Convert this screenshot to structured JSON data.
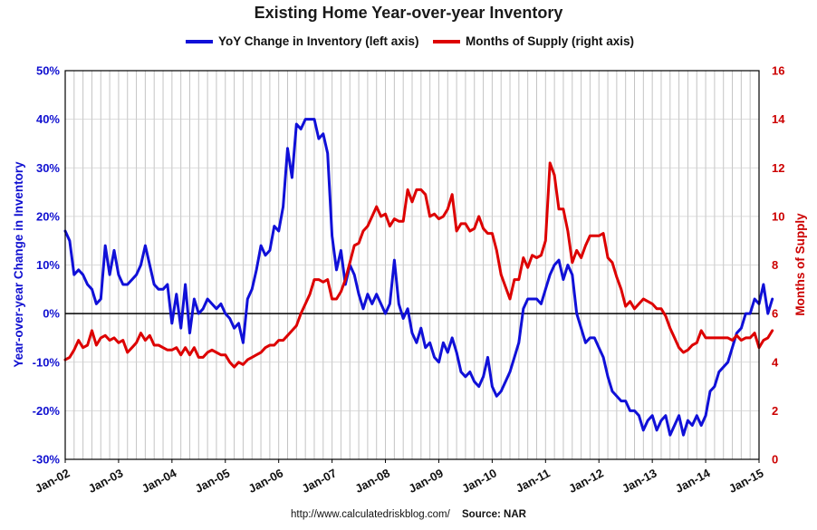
{
  "chart_data": {
    "type": "line",
    "title": "Existing Home Year-over-year Inventory",
    "legend": [
      "YoY Change in Inventory (left axis)",
      "Months of Supply (right axis)"
    ],
    "ylabel_left": "Year-over-year Change in Inventory",
    "ylabel_right": "Months of Supply",
    "ylim_left": [
      -0.3,
      0.5
    ],
    "ylim_right": [
      0,
      16
    ],
    "yticks_left": [
      "-30%",
      "-20%",
      "-10%",
      "0%",
      "10%",
      "20%",
      "30%",
      "40%",
      "50%"
    ],
    "yticks_right": [
      "0",
      "2",
      "4",
      "6",
      "8",
      "10",
      "12",
      "14",
      "16"
    ],
    "xticks": [
      "Jan-02",
      "Jan-03",
      "Jan-04",
      "Jan-05",
      "Jan-06",
      "Jan-07",
      "Jan-08",
      "Jan-09",
      "Jan-10",
      "Jan-11",
      "Jan-12",
      "Jan-13",
      "Jan-14",
      "Jan-15"
    ],
    "x_start": "Jan-02",
    "colors": {
      "yoy": "#1010d8",
      "supply": "#dd0000"
    },
    "series": [
      {
        "name": "YoY Change in Inventory (left axis)",
        "axis": "left",
        "values": [
          0.17,
          0.15,
          0.08,
          0.09,
          0.08,
          0.06,
          0.05,
          0.02,
          0.03,
          0.14,
          0.08,
          0.13,
          0.08,
          0.06,
          0.06,
          0.07,
          0.08,
          0.1,
          0.14,
          0.1,
          0.06,
          0.05,
          0.05,
          0.06,
          -0.02,
          0.04,
          -0.03,
          0.06,
          -0.04,
          0.03,
          0.0,
          0.01,
          0.03,
          0.02,
          0.01,
          0.02,
          0.0,
          -0.01,
          -0.03,
          -0.02,
          -0.06,
          0.03,
          0.05,
          0.09,
          0.14,
          0.12,
          0.13,
          0.18,
          0.17,
          0.22,
          0.34,
          0.28,
          0.39,
          0.38,
          0.4,
          0.4,
          0.4,
          0.36,
          0.37,
          0.33,
          0.16,
          0.09,
          0.13,
          0.06,
          0.1,
          0.08,
          0.04,
          0.01,
          0.04,
          0.02,
          0.04,
          0.02,
          0.0,
          0.02,
          0.11,
          0.02,
          -0.01,
          0.01,
          -0.04,
          -0.06,
          -0.03,
          -0.07,
          -0.06,
          -0.09,
          -0.1,
          -0.06,
          -0.08,
          -0.05,
          -0.08,
          -0.12,
          -0.13,
          -0.12,
          -0.14,
          -0.15,
          -0.13,
          -0.09,
          -0.15,
          -0.17,
          -0.16,
          -0.14,
          -0.12,
          -0.09,
          -0.06,
          0.01,
          0.03,
          0.03,
          0.03,
          0.02,
          0.05,
          0.08,
          0.1,
          0.11,
          0.07,
          0.1,
          0.08,
          0.0,
          -0.03,
          -0.06,
          -0.05,
          -0.05,
          -0.07,
          -0.09,
          -0.13,
          -0.16,
          -0.17,
          -0.18,
          -0.18,
          -0.2,
          -0.2,
          -0.21,
          -0.24,
          -0.22,
          -0.21,
          -0.24,
          -0.22,
          -0.21,
          -0.25,
          -0.23,
          -0.21,
          -0.25,
          -0.22,
          -0.23,
          -0.21,
          -0.23,
          -0.21,
          -0.16,
          -0.15,
          -0.12,
          -0.11,
          -0.1,
          -0.07,
          -0.04,
          -0.03,
          0.0,
          0.0,
          0.03,
          0.02,
          0.06,
          0.0,
          0.03
        ]
      },
      {
        "name": "Months of Supply (right axis)",
        "axis": "right",
        "values": [
          4.1,
          4.2,
          4.5,
          4.9,
          4.6,
          4.7,
          5.3,
          4.7,
          5.0,
          5.1,
          4.9,
          5.0,
          4.8,
          4.9,
          4.4,
          4.6,
          4.8,
          5.2,
          4.9,
          5.1,
          4.7,
          4.7,
          4.6,
          4.5,
          4.5,
          4.6,
          4.3,
          4.6,
          4.3,
          4.6,
          4.2,
          4.2,
          4.4,
          4.5,
          4.4,
          4.3,
          4.3,
          4.0,
          3.8,
          4.0,
          3.9,
          4.1,
          4.2,
          4.3,
          4.4,
          4.6,
          4.7,
          4.7,
          4.9,
          4.9,
          5.1,
          5.3,
          5.5,
          6.0,
          6.4,
          6.8,
          7.4,
          7.4,
          7.3,
          7.4,
          6.6,
          6.6,
          6.9,
          7.4,
          8.1,
          8.8,
          8.9,
          9.4,
          9.6,
          10.0,
          10.4,
          10.0,
          10.1,
          9.6,
          9.9,
          9.8,
          9.8,
          11.1,
          10.6,
          11.1,
          11.1,
          10.9,
          10.0,
          10.1,
          9.9,
          10.0,
          10.3,
          10.9,
          9.4,
          9.7,
          9.7,
          9.4,
          9.5,
          10.0,
          9.5,
          9.3,
          9.3,
          8.6,
          7.6,
          7.1,
          6.6,
          7.4,
          7.4,
          8.3,
          7.9,
          8.4,
          8.3,
          8.4,
          9.0,
          12.2,
          11.7,
          10.3,
          10.3,
          9.4,
          8.1,
          8.6,
          8.3,
          8.8,
          9.2,
          9.2,
          9.2,
          9.3,
          8.3,
          8.1,
          7.5,
          7.0,
          6.3,
          6.5,
          6.2,
          6.4,
          6.6,
          6.5,
          6.4,
          6.2,
          6.2,
          5.9,
          5.4,
          5.0,
          4.6,
          4.4,
          4.5,
          4.7,
          4.8,
          5.3,
          5.0,
          5.0,
          5.0,
          5.0,
          5.0,
          5.0,
          4.9,
          5.1,
          4.9,
          5.0,
          5.0,
          5.2,
          4.6,
          4.9,
          5.0,
          5.3
        ]
      }
    ]
  },
  "footer": {
    "url": "http://www.calculatedriskblog.com/",
    "source": "Source: NAR"
  }
}
